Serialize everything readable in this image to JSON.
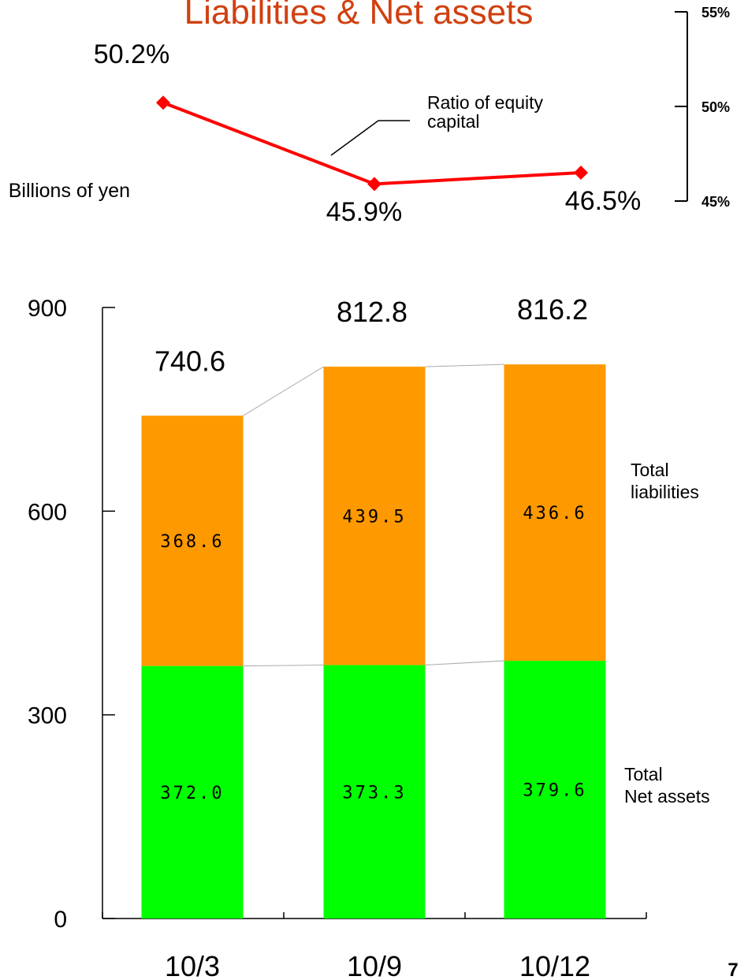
{
  "chart_data": [
    {
      "type": "stacked_bar",
      "title": "Liabilities & Net assets",
      "y_label": "Billions of yen",
      "categories": [
        "10/3",
        "10/9",
        "10/12"
      ],
      "series": [
        {
          "name": "Total\nNet assets",
          "color": "#00ff00",
          "values": [
            372.0,
            373.3,
            379.6
          ],
          "value_labels": [
            "372.0",
            "373.3",
            "379.6"
          ]
        },
        {
          "name": "Total\nliabilities",
          "color": "#ff9900",
          "values": [
            368.6,
            439.5,
            436.6
          ],
          "value_labels": [
            "368.6",
            "439.5",
            "436.6"
          ]
        }
      ],
      "totals": [
        740.6,
        812.8,
        816.2
      ],
      "ylim": [
        0,
        900
      ],
      "yticks": [
        0,
        300,
        600,
        900
      ]
    },
    {
      "type": "line",
      "series": [
        {
          "name": "Ratio of equity\ncapital",
          "color": "#ff0000",
          "values": [
            50.2,
            45.9,
            46.5
          ],
          "value_labels": [
            "50.2%",
            "45.9%",
            "46.5%"
          ],
          "axis": "y2"
        }
      ],
      "y2lim": [
        45,
        55
      ],
      "y2ticks": [
        {
          "value": 45,
          "label": "45%"
        },
        {
          "value": 50,
          "label": "50%"
        },
        {
          "value": 55,
          "label": "55%"
        }
      ]
    }
  ],
  "page_number": "7"
}
